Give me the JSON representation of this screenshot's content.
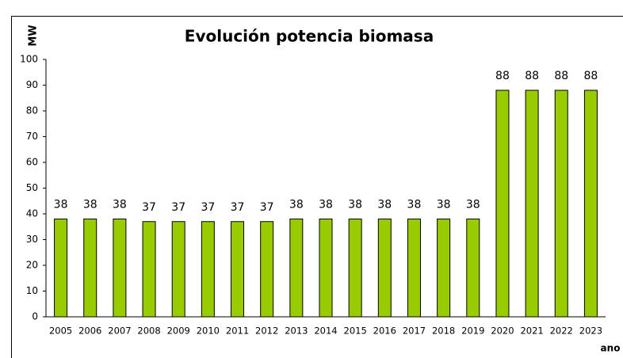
{
  "chart_data": {
    "type": "bar",
    "title": "Evolución potencia biomasa",
    "y_label": "MW",
    "x_label": "ano",
    "categories": [
      "2005",
      "2006",
      "2007",
      "2008",
      "2009",
      "2010",
      "2011",
      "2012",
      "2013",
      "2014",
      "2015",
      "2016",
      "2017",
      "2018",
      "2019",
      "2020",
      "2021",
      "2022",
      "2023"
    ],
    "values": [
      38,
      38,
      38,
      37,
      37,
      37,
      37,
      37,
      38,
      38,
      38,
      38,
      38,
      38,
      38,
      88,
      88,
      88,
      88
    ],
    "color": "#99cc00",
    "ylim": [
      0,
      100
    ],
    "yticks": [
      0,
      10,
      20,
      30,
      40,
      50,
      60,
      70,
      80,
      90,
      100
    ],
    "grid": false
  }
}
